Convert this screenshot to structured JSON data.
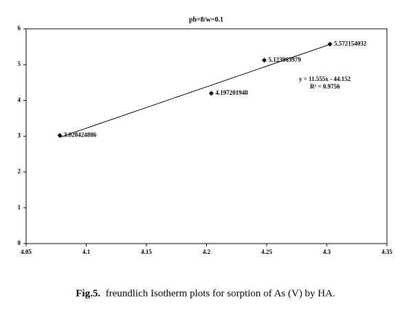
{
  "chart_data": {
    "type": "scatter",
    "title": "ph=8/w=0.1",
    "x": [
      4.078,
      4.204,
      4.248,
      4.3026
    ],
    "values": [
      3.020424886,
      4.197201948,
      5.123963979,
      5.572154032
    ],
    "color": "#000000",
    "xlim": [
      4.05,
      4.35
    ],
    "xticks": [
      4.05,
      4.1,
      4.15,
      4.2,
      4.25,
      4.3,
      4.35
    ],
    "ylim": [
      0,
      6
    ],
    "yticks": [
      0,
      1,
      2,
      3,
      4,
      5,
      6
    ],
    "grid": false,
    "trendline": {
      "slope": 11.555,
      "intercept": -44.152,
      "equation": "y = 11.555x - 44.152",
      "r2": "R² = 0.9756"
    }
  },
  "caption": {
    "label": "Fig.5.",
    "text": "freundlich Isotherm plots for sorption of As (V) by HA."
  }
}
